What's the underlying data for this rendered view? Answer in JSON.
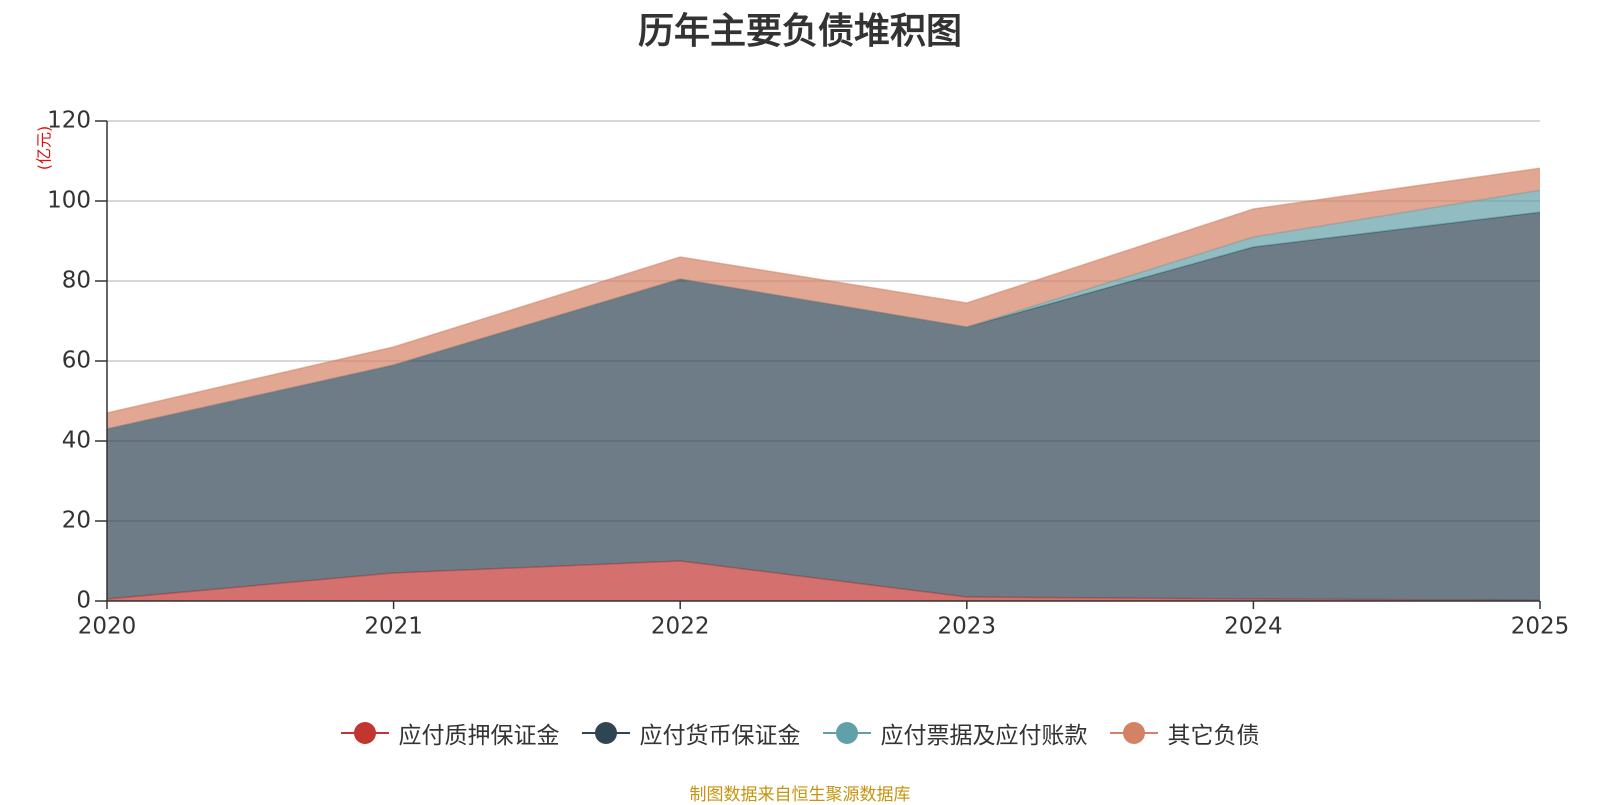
{
  "chart_data": {
    "type": "area",
    "stacked": true,
    "title": "历年主要负债堆积图",
    "ylabel": "(亿元)",
    "x": [
      "2020",
      "2021",
      "2022",
      "2023",
      "2024",
      "2025"
    ],
    "ylim": [
      0,
      120
    ],
    "yticks": [
      0,
      20,
      40,
      60,
      80,
      100,
      120
    ],
    "grid": true,
    "legend_position": "bottom",
    "series": [
      {
        "name": "应付质押保证金",
        "color": "#c23531",
        "values": [
          0.5,
          7,
          10,
          1,
          0.5,
          0.2
        ]
      },
      {
        "name": "应付货币保证金",
        "color": "#2f4554",
        "values": [
          42.5,
          52,
          70.5,
          67.5,
          88,
          97
        ]
      },
      {
        "name": "应付票据及应付账款",
        "color": "#61a0a8",
        "values": [
          0,
          0,
          0,
          0,
          2.5,
          5.5
        ]
      },
      {
        "name": "其它负债",
        "color": "#d48265",
        "values": [
          4,
          4.5,
          5.5,
          6,
          7,
          5.5
        ]
      }
    ]
  },
  "source_note": "制图数据来自恒生聚源数据库"
}
